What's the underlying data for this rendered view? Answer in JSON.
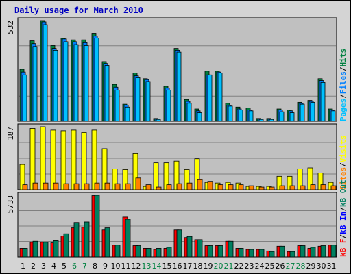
{
  "chart_data": {
    "type": "bar",
    "title": "Daily usage for March 2010",
    "categories": [
      "1",
      "2",
      "3",
      "4",
      "5",
      "6",
      "7",
      "8",
      "9",
      "10",
      "11",
      "12",
      "13",
      "14",
      "15",
      "16",
      "17",
      "18",
      "19",
      "20",
      "21",
      "22",
      "23",
      "24",
      "25",
      "26",
      "27",
      "28",
      "29",
      "30",
      "31"
    ],
    "weekend_days": [
      "6",
      "7",
      "13",
      "14",
      "20",
      "21",
      "27",
      "28"
    ],
    "colors": {
      "hits": "#008040",
      "files": "#0080ff",
      "pages": "#00c0ff",
      "visits": "#ffff00",
      "sites": "#ff8000",
      "kb_out": "#008060",
      "kb_in": "#0000ff",
      "kb_f": "#ff0000",
      "weekday_tick": "#000000",
      "weekend_tick": "#008040",
      "title": "#0000c0",
      "background": "#d4d4d4",
      "plot_background": "#c0c0c0",
      "gridline": "#808080"
    },
    "panels": [
      {
        "key": "hits",
        "ymax": 532,
        "ymax_label": "532",
        "legend": [
          {
            "text": "Pages",
            "color": "#00c0ff"
          },
          {
            "text": "/",
            "color": "#000000"
          },
          {
            "text": "Files",
            "color": "#0080ff"
          },
          {
            "text": "/",
            "color": "#000000"
          },
          {
            "text": "Hits",
            "color": "#008040"
          }
        ],
        "series": [
          {
            "name": "Hits",
            "color": "#008040",
            "values": [
              275,
              425,
              532,
              400,
              440,
              430,
              430,
              465,
              315,
              195,
              90,
              255,
              225,
              15,
              185,
              385,
              115,
              65,
              265,
              265,
              95,
              75,
              70,
              15,
              15,
              65,
              60,
              100,
              110,
              225,
              65
            ]
          },
          {
            "name": "Files",
            "color": "#0080ff",
            "values": [
              260,
              410,
              525,
              385,
              435,
              420,
              415,
              450,
              305,
              180,
              85,
              240,
              220,
              12,
              175,
              375,
              105,
              55,
              245,
              260,
              85,
              65,
              60,
              12,
              12,
              60,
              55,
              95,
              105,
              215,
              60
            ]
          },
          {
            "name": "Pages",
            "color": "#00c0ff",
            "values": [
              245,
              395,
              510,
              375,
              420,
              405,
              400,
              440,
              295,
              165,
              75,
              230,
              210,
              10,
              165,
              365,
              95,
              45,
              245,
              255,
              80,
              60,
              55,
              10,
              10,
              50,
              45,
              90,
              100,
              205,
              55
            ]
          }
        ]
      },
      {
        "key": "visits",
        "ymax": 187,
        "ymax_label": "187",
        "legend": [
          {
            "text": "Sites",
            "color": "#ff8000"
          },
          {
            "text": "/",
            "color": "#000000"
          },
          {
            "text": "Visits",
            "color": "#ffff00"
          }
        ],
        "series": [
          {
            "name": "Visits",
            "color": "#ffff00",
            "values": [
              75,
              182,
              187,
              177,
              175,
              177,
              170,
              177,
              122,
              62,
              60,
              107,
              10,
              80,
              80,
              85,
              60,
              92,
              22,
              20,
              22,
              20,
              10,
              10,
              10,
              40,
              40,
              62,
              65,
              50,
              22
            ]
          },
          {
            "name": "Sites",
            "color": "#ff8000",
            "values": [
              15,
              20,
              20,
              20,
              18,
              18,
              18,
              20,
              20,
              18,
              18,
              35,
              15,
              8,
              15,
              18,
              20,
              30,
              25,
              15,
              15,
              15,
              12,
              8,
              8,
              12,
              12,
              12,
              15,
              15,
              12
            ]
          }
        ]
      },
      {
        "key": "kbytes",
        "ymax": 5733,
        "ymax_label": "5733",
        "legend": [
          {
            "text": "kB F",
            "color": "#ff0000"
          },
          {
            "text": "/",
            "color": "#000000"
          },
          {
            "text": "kB In",
            "color": "#0000ff"
          },
          {
            "text": "/",
            "color": "#000000"
          },
          {
            "text": "kB Out",
            "color": "#008060"
          }
        ],
        "series": [
          {
            "name": "kB F",
            "color": "#ff0000",
            "values": [
              800,
              1350,
              1350,
              1300,
              1950,
              2700,
              2750,
              5700,
              2500,
              1100,
              3700,
              1050,
              800,
              700,
              800,
              2500,
              1800,
              1600,
              1050,
              1050,
              1450,
              800,
              700,
              700,
              550,
              1000,
              500,
              1050,
              800,
              1000,
              1100
            ]
          },
          {
            "name": "kB Out",
            "color": "#008060",
            "values": [
              800,
              1450,
              1350,
              1500,
              2150,
              3200,
              3250,
              5733,
              2700,
              1100,
              3500,
              1050,
              800,
              800,
              900,
              2500,
              1900,
              1600,
              1050,
              1050,
              1450,
              800,
              700,
              700,
              500,
              1000,
              500,
              1050,
              900,
              1050,
              1100
            ]
          }
        ]
      }
    ]
  }
}
